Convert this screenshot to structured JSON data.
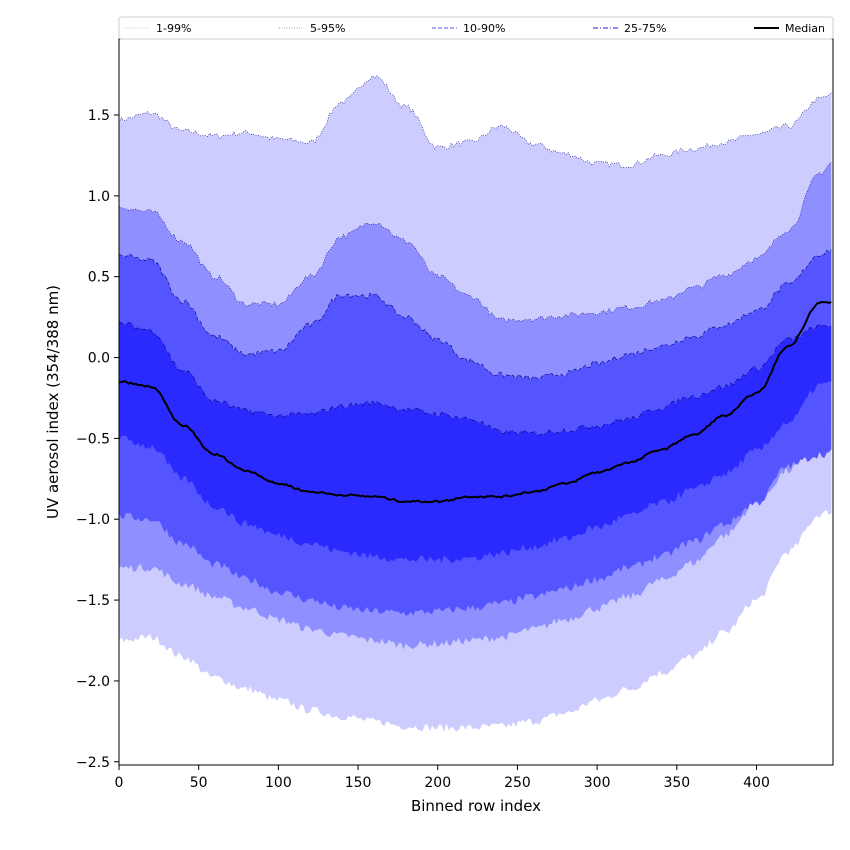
{
  "chart_data": {
    "type": "area",
    "title": "",
    "xlabel": "Binned row index",
    "ylabel": "UV aerosol index (354/388 nm)",
    "xlim": [
      0,
      448
    ],
    "ylim": [
      -2.52,
      1.97
    ],
    "xticks": [
      0,
      50,
      100,
      150,
      200,
      250,
      300,
      350,
      400
    ],
    "yticks": [
      1.5,
      1.0,
      0.5,
      0.0,
      -0.5,
      -1.0,
      -1.5,
      -2.0,
      -2.5
    ],
    "ytick_labels": [
      "1.5",
      "1.0",
      "0.5",
      "0.0",
      "−0.5",
      "−1.0",
      "−1.5",
      "−2.0",
      "−2.5"
    ],
    "grid": false,
    "legend_position": "top",
    "x": [
      0,
      20,
      40,
      60,
      80,
      100,
      120,
      140,
      160,
      180,
      200,
      220,
      240,
      260,
      280,
      300,
      320,
      340,
      360,
      380,
      400,
      420,
      440,
      448
    ],
    "colors": {
      "band_1_99": "#ccccff",
      "band_5_95": "#8f8fff",
      "band_10_90": "#5555ff",
      "band_25_75": "#2a2aff",
      "median": "#000000"
    },
    "series": [
      {
        "name": "1-99%",
        "band": "band_1_99",
        "line_style": "dotted",
        "upper": [
          1.47,
          1.51,
          1.4,
          1.37,
          1.39,
          1.35,
          1.33,
          1.58,
          1.74,
          1.55,
          1.3,
          1.33,
          1.43,
          1.32,
          1.26,
          1.2,
          1.19,
          1.25,
          1.29,
          1.33,
          1.38,
          1.43,
          1.6,
          1.63
        ],
        "lower": [
          -1.75,
          -1.73,
          -1.85,
          -1.98,
          -2.05,
          -2.12,
          -2.18,
          -2.22,
          -2.25,
          -2.28,
          -2.29,
          -2.29,
          -2.28,
          -2.25,
          -2.2,
          -2.12,
          -2.05,
          -1.95,
          -1.85,
          -1.7,
          -1.5,
          -1.2,
          -0.97,
          -0.95
        ]
      },
      {
        "name": "5-95%",
        "band": "band_5_95",
        "line_style": "dotted",
        "upper": [
          0.93,
          0.9,
          0.72,
          0.5,
          0.33,
          0.33,
          0.5,
          0.75,
          0.84,
          0.72,
          0.5,
          0.38,
          0.23,
          0.24,
          0.26,
          0.28,
          0.31,
          0.35,
          0.43,
          0.51,
          0.61,
          0.79,
          1.14,
          1.21
        ],
        "lower": [
          -1.3,
          -1.3,
          -1.4,
          -1.48,
          -1.55,
          -1.62,
          -1.68,
          -1.72,
          -1.75,
          -1.78,
          -1.77,
          -1.75,
          -1.73,
          -1.68,
          -1.62,
          -1.55,
          -1.48,
          -1.38,
          -1.27,
          -1.1,
          -0.9,
          -0.7,
          -0.43,
          -0.42
        ]
      },
      {
        "name": "10-90%",
        "band": "band_10_90",
        "line_style": "dashed",
        "upper": [
          0.63,
          0.6,
          0.35,
          0.13,
          0.02,
          0.04,
          0.2,
          0.39,
          0.38,
          0.25,
          0.11,
          -0.02,
          -0.11,
          -0.13,
          -0.1,
          -0.04,
          0.02,
          0.07,
          0.13,
          0.2,
          0.29,
          0.45,
          0.64,
          0.67
        ],
        "lower": [
          -0.98,
          -1.0,
          -1.15,
          -1.28,
          -1.37,
          -1.45,
          -1.5,
          -1.55,
          -1.57,
          -1.58,
          -1.57,
          -1.55,
          -1.52,
          -1.48,
          -1.43,
          -1.37,
          -1.3,
          -1.23,
          -1.14,
          -1.03,
          -0.9,
          -0.67,
          -0.6,
          -0.59
        ]
      },
      {
        "name": "25-75%",
        "band": "band_25_75",
        "line_style": "dashdot",
        "upper": [
          0.21,
          0.17,
          -0.08,
          -0.27,
          -0.33,
          -0.36,
          -0.35,
          -0.3,
          -0.28,
          -0.32,
          -0.35,
          -0.38,
          -0.46,
          -0.47,
          -0.45,
          -0.42,
          -0.38,
          -0.31,
          -0.24,
          -0.18,
          -0.07,
          0.11,
          0.19,
          0.2
        ],
        "lower": [
          -0.5,
          -0.55,
          -0.75,
          -0.92,
          -1.03,
          -1.1,
          -1.15,
          -1.2,
          -1.23,
          -1.25,
          -1.25,
          -1.24,
          -1.21,
          -1.17,
          -1.12,
          -1.05,
          -0.98,
          -0.9,
          -0.82,
          -0.72,
          -0.58,
          -0.4,
          -0.17,
          -0.16
        ]
      },
      {
        "name": "Median",
        "role": "line",
        "values": [
          -0.15,
          -0.18,
          -0.42,
          -0.6,
          -0.7,
          -0.78,
          -0.83,
          -0.85,
          -0.86,
          -0.89,
          -0.89,
          -0.86,
          -0.86,
          -0.83,
          -0.78,
          -0.71,
          -0.65,
          -0.57,
          -0.48,
          -0.36,
          -0.22,
          0.07,
          0.34,
          0.34
        ]
      }
    ]
  }
}
